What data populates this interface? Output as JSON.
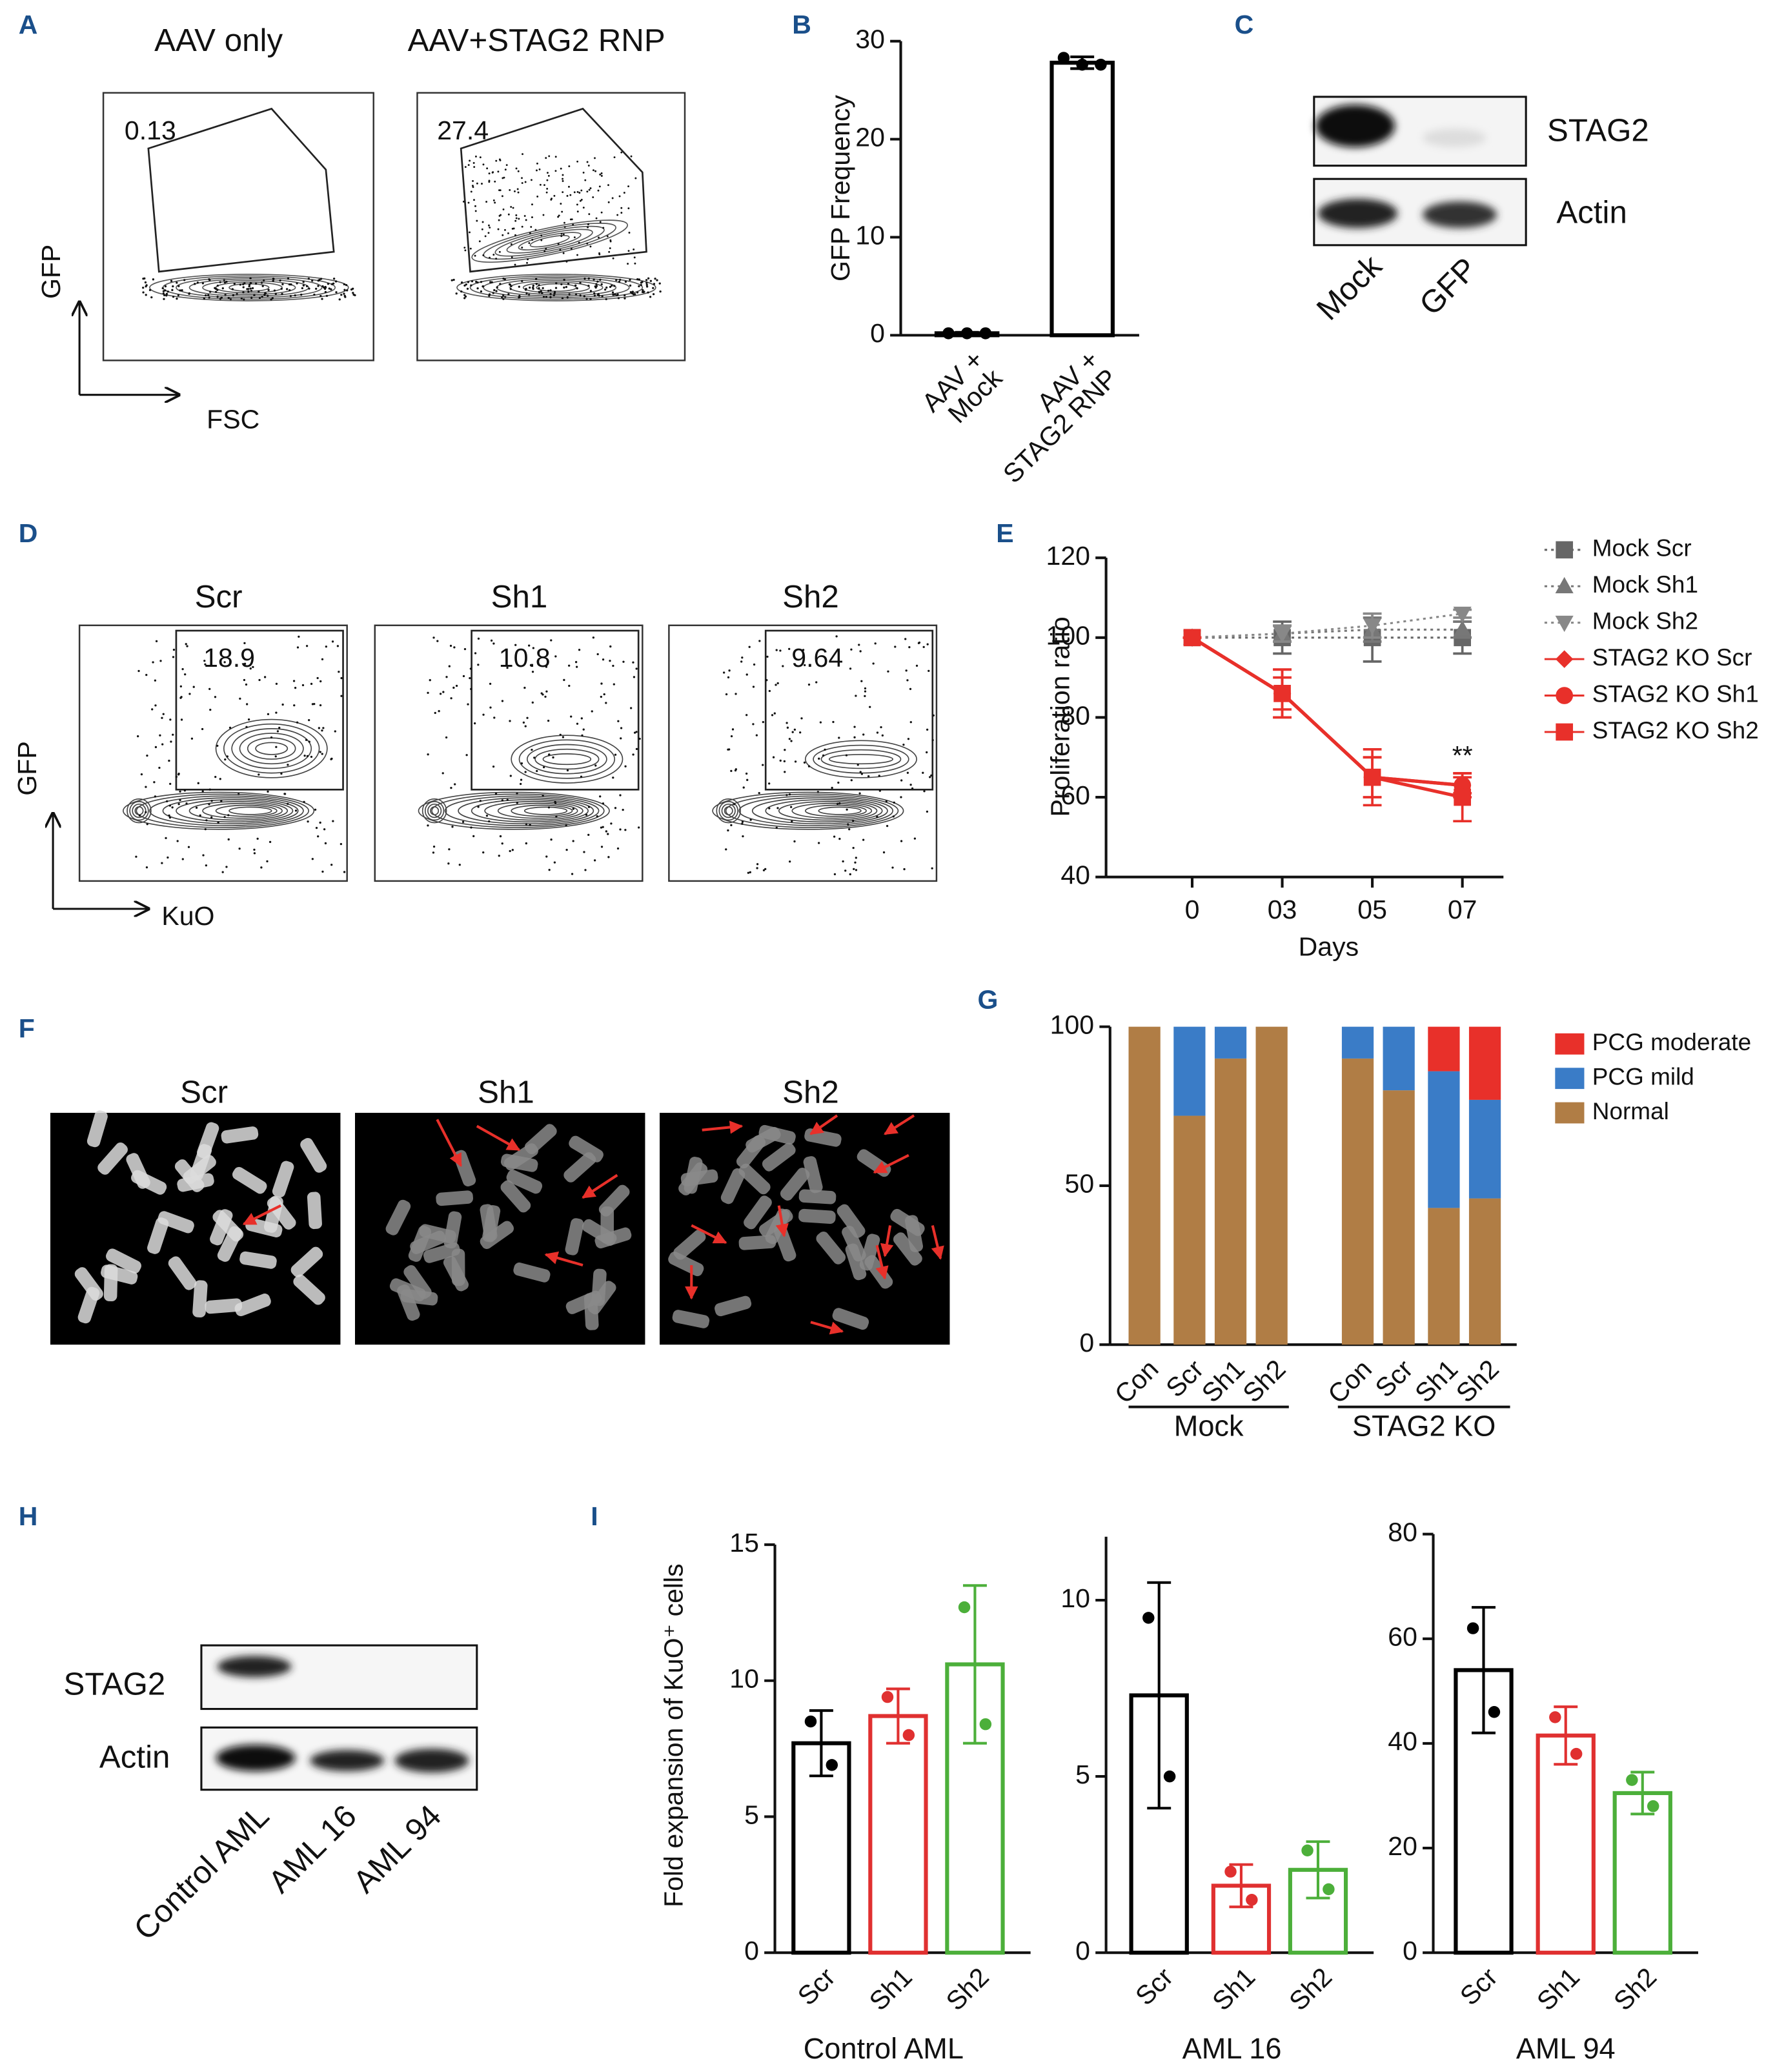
{
  "figure": {
    "panel_labels": [
      "A",
      "B",
      "C",
      "D",
      "E",
      "F",
      "G",
      "H",
      "I"
    ],
    "A": {
      "titles": [
        "AAV only",
        "AAV+STAG2 RNP"
      ],
      "gate_values": [
        0.13,
        27.4
      ],
      "y_axis": "GFP",
      "x_axis": "FSC"
    },
    "C": {
      "rows": [
        "STAG2",
        "Actin"
      ],
      "lanes": [
        "Mock",
        "GFP"
      ]
    },
    "D": {
      "titles": [
        "Scr",
        "Sh1",
        "Sh2"
      ],
      "gate_values": [
        18.9,
        10.8,
        9.64
      ],
      "y_axis": "GFP",
      "x_axis": "KuO"
    },
    "F": {
      "titles": [
        "Scr",
        "Sh1",
        "Sh2"
      ]
    },
    "H": {
      "rows": [
        "STAG2",
        "Actin"
      ],
      "lanes": [
        "Control AML",
        "AML 16",
        "AML 94"
      ]
    }
  },
  "chart_data": [
    {
      "type": "bar",
      "ylabel": "GFP Frequency",
      "categories": [
        [
          "AAV +",
          "Mock"
        ],
        [
          "AAV +",
          "STAG2 RNP"
        ]
      ],
      "values": [
        0.2,
        27.8
      ],
      "errors": [
        0.1,
        0.6
      ],
      "points": [
        [
          0.2,
          0.2,
          0.2
        ],
        [
          28.3,
          27.6,
          27.6
        ]
      ],
      "color": "#000000",
      "ylim": [
        0,
        30
      ],
      "yticks": [
        0,
        10,
        20,
        30
      ]
    },
    {
      "type": "line",
      "xlabel": "Days",
      "ylabel": "Proliferation ratio",
      "categories": [
        "0",
        "03",
        "05",
        "07"
      ],
      "ylim": [
        40,
        120
      ],
      "yticks": [
        40,
        60,
        80,
        100,
        120
      ],
      "series": [
        {
          "name": "Mock Scr",
          "color": "#666666",
          "marker": "square",
          "dash": true,
          "values": [
            100,
            100,
            100,
            100
          ],
          "errors": [
            0,
            4,
            6,
            4
          ]
        },
        {
          "name": "Mock Sh1",
          "color": "#777777",
          "marker": "triangle-up",
          "dash": true,
          "values": [
            100,
            101,
            102,
            102
          ],
          "errors": [
            0,
            2,
            3,
            2
          ]
        },
        {
          "name": "Mock Sh2",
          "color": "#888888",
          "marker": "triangle-down",
          "dash": true,
          "values": [
            100,
            101,
            103,
            106
          ],
          "errors": [
            0,
            2,
            3,
            1
          ]
        },
        {
          "name": "STAG2 KO Scr",
          "color": "#e8302a",
          "marker": "diamond",
          "dash": false,
          "values": [
            100,
            86,
            65,
            63
          ],
          "errors": [
            0,
            4,
            5,
            3
          ]
        },
        {
          "name": "STAG2 KO Sh1",
          "color": "#e8302a",
          "marker": "circle",
          "dash": false,
          "values": [
            100,
            86,
            65,
            63
          ],
          "errors": [
            0,
            6,
            5,
            2
          ]
        },
        {
          "name": "STAG2 KO Sh2",
          "color": "#e8302a",
          "marker": "square",
          "dash": false,
          "values": [
            100,
            86,
            65,
            60
          ],
          "errors": [
            0,
            6,
            7,
            6
          ]
        }
      ],
      "annotations": [
        {
          "text": "**",
          "x": "07",
          "y": 70
        }
      ]
    },
    {
      "type": "stacked-bar",
      "categories": [
        "Con",
        "Scr",
        "Sh1",
        "Sh2",
        "Con",
        "Scr",
        "Sh1",
        "Sh2"
      ],
      "groups": [
        "Mock",
        "STAG2 KO"
      ],
      "ylim": [
        0,
        100
      ],
      "yticks": [
        0,
        50,
        100
      ],
      "series": [
        {
          "name": "PCG moderate",
          "color": "#e8302a",
          "values": [
            0,
            0,
            0,
            0,
            0,
            0,
            14,
            23
          ]
        },
        {
          "name": "PCG mild",
          "color": "#3a7cc7",
          "values": [
            0,
            28,
            10,
            0,
            10,
            20,
            43,
            31
          ]
        },
        {
          "name": "Normal",
          "color": "#b07d45",
          "values": [
            100,
            72,
            90,
            100,
            90,
            80,
            43,
            46
          ]
        }
      ]
    },
    {
      "type": "bar",
      "title": "Control AML",
      "ylabel": "Fold expansion of KuO⁺ cells",
      "categories": [
        "Scr",
        "Sh1",
        "Sh2"
      ],
      "colors": [
        "#000000",
        "#e03030",
        "#4caf3a"
      ],
      "values": [
        7.7,
        8.7,
        10.6
      ],
      "errors": [
        1.2,
        1.0,
        2.9
      ],
      "points": [
        [
          8.5,
          6.9
        ],
        [
          9.4,
          8.0
        ],
        [
          12.7,
          8.4
        ]
      ],
      "ylim": [
        0,
        15
      ],
      "yticks": [
        0,
        5,
        10,
        15
      ]
    },
    {
      "type": "bar",
      "title": "AML 16",
      "categories": [
        "Scr",
        "Sh1",
        "Sh2"
      ],
      "colors": [
        "#000000",
        "#e03030",
        "#4caf3a"
      ],
      "values": [
        7.3,
        1.9,
        2.35
      ],
      "errors": [
        3.2,
        0.6,
        0.8
      ],
      "points": [
        [
          9.5,
          5.0
        ],
        [
          2.3,
          1.5
        ],
        [
          2.9,
          1.8
        ]
      ],
      "ylim": [
        0,
        11.8
      ],
      "yticks": [
        0,
        5,
        10
      ]
    },
    {
      "type": "bar",
      "title": "AML 94",
      "categories": [
        "Scr",
        "Sh1",
        "Sh2"
      ],
      "colors": [
        "#000000",
        "#e03030",
        "#4caf3a"
      ],
      "values": [
        54,
        41.5,
        30.5
      ],
      "errors": [
        12,
        5.5,
        4
      ],
      "points": [
        [
          62,
          46
        ],
        [
          45,
          38
        ],
        [
          33,
          28
        ]
      ],
      "ylim": [
        0,
        80
      ],
      "yticks": [
        0,
        20,
        40,
        60,
        80
      ]
    }
  ]
}
